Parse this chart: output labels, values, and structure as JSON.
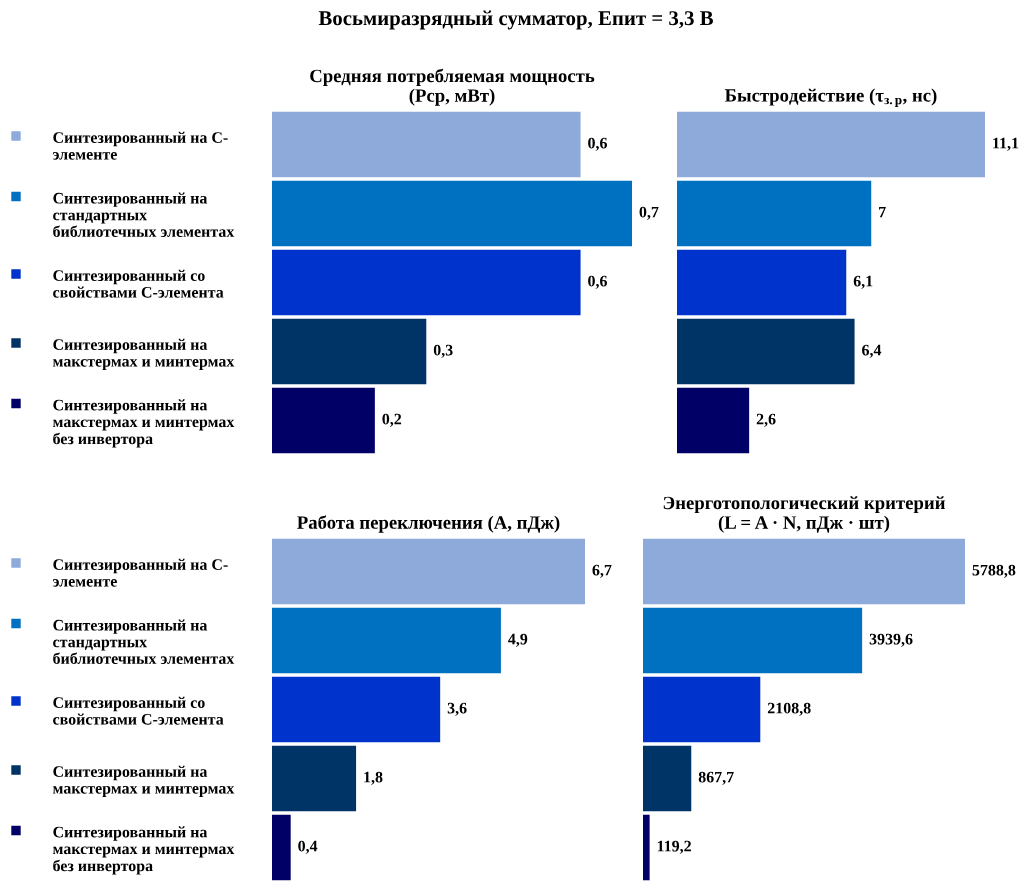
{
  "chart_data": [
    {
      "type": "bar",
      "orientation": "horizontal",
      "title": "Средняя потребляемая мощность\n(Рср, мВт)",
      "categories": [
        "Синтезированный на С-\nэлементе",
        "Синтезированный на\nстандартных\nбиблиотечных элементах",
        "Синтезированный со\nсвойствами С-элемента",
        "Синтезированный на\nмакстермах и минтермах",
        "Синтезированный на\nмакстермах и минтермах\nбез инвертора"
      ],
      "values": [
        0.6,
        0.7,
        0.6,
        0.3,
        0.2
      ],
      "value_labels": [
        "0,6",
        "0,7",
        "0,6",
        "0,3",
        "0,2"
      ],
      "colors": [
        "#8eaadb",
        "#0070c0",
        "#0033cc",
        "#003366",
        "#000066"
      ],
      "tick_labels": "y",
      "subtitle": "Восьмиразрядный сумматор, Епит = 3,3 В"
    },
    {
      "type": "bar",
      "orientation": "horizontal",
      "title": "Быстродействие (τ$_{з.р}$, нс)",
      "categories": [
        null,
        null,
        null,
        null,
        null
      ],
      "values": [
        11.1,
        7,
        6.1,
        6.4,
        2.6
      ],
      "value_labels": [
        "11,1",
        "7",
        "6,1",
        "6,4",
        "2,6"
      ],
      "colors": [
        "#8eaadb",
        "#0070c0",
        "#0033cc",
        "#003366",
        "#000066"
      ],
      "tick_labels": false
    },
    {
      "type": "bar",
      "orientation": "horizontal",
      "title": "Работа переключения (А, пДж)",
      "categories": [
        "Синтезированный на С-\nэлементе",
        "Синтезированный на\nстандартных\nбиблиотечных элементах",
        "Синтезированный со\nсвойствами С-элемента",
        "Синтезированный на\nмакстермах и минтермах",
        "Синтезированный на\nмакстермах и минтермах\nбез инвертора"
      ],
      "values": [
        6.7,
        4.9,
        3.6,
        1.8,
        0.4
      ],
      "value_labels": [
        "6,7",
        "4,9",
        "3,6",
        "1,8",
        "0,4"
      ],
      "colors": [
        "#8eaadb",
        "#0070c0",
        "#0033cc",
        "#003366",
        "#000066"
      ],
      "tick_labels": "y"
    },
    {
      "type": "bar",
      "orientation": "horizontal",
      "title": "Энерготопологический критерий\n(L = A · N, пДж · шт)",
      "categories": [
        null,
        null,
        null,
        null,
        null
      ],
      "values": [
        5788.8,
        3939.6,
        2108.8,
        867.7,
        119.2
      ],
      "value_labels": [
        "5788,8",
        "3939,6",
        "2108,8",
        "867,7",
        "119,2"
      ],
      "colors": [
        "#8eaadb",
        "#0070c0",
        "#0033cc",
        "#003366",
        "#000066"
      ],
      "tick_labels": false
    }
  ]
}
